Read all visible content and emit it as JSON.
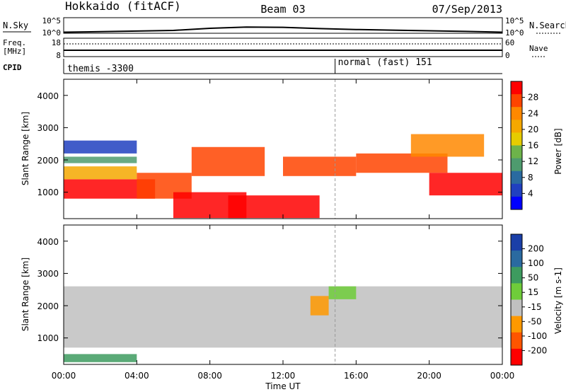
{
  "header": {
    "radar": "Hokkaido (fitACF)",
    "beam": "Beam 03",
    "date": "07/Sep/2013"
  },
  "top_panels": {
    "nsky_label": "N.Sky",
    "nsearch_label": "N.Search",
    "nsky_ticks": [
      "10^5",
      "10^0"
    ],
    "nsearch_ticks": [
      "10^5",
      "10^0"
    ],
    "freq_label_1": "Freq.",
    "freq_label_2": "[MHz]",
    "freq_ticks": [
      "18",
      "8"
    ],
    "nave_label": "Nave",
    "nave_ticks": [
      "60",
      "0"
    ],
    "cpid_label": "CPID",
    "cpid_entries": [
      {
        "label": "themis -3300",
        "start_hour": 0.0
      },
      {
        "label": "normal (fast) 151",
        "start_hour": 14.85
      }
    ]
  },
  "power_panel": {
    "ylabel": "Slant Range [km]",
    "yticks": [
      "4000",
      "3000",
      "2000",
      "1000"
    ],
    "colorbar_label": "Power [dB]",
    "colorbar_ticks": [
      "28",
      "24",
      "20",
      "16",
      "12",
      "8",
      "4"
    ],
    "colorbar_colors": [
      "#ff0000",
      "#ff4400",
      "#ff8800",
      "#f5a800",
      "#e6cc00",
      "#6db34a",
      "#4e9b6e",
      "#2a6aa0",
      "#2040c0",
      "#0000ff"
    ]
  },
  "velocity_panel": {
    "ylabel": "Slant Range [km]",
    "yticks": [
      "4000",
      "3000",
      "2000",
      "1000"
    ],
    "colorbar_label": "Velocity [m s-1]",
    "colorbar_ticks": [
      "200",
      "100",
      "50",
      "15",
      "-15",
      "-50",
      "-100",
      "-200"
    ],
    "colorbar_colors": [
      "#1a3fa8",
      "#2a6aa0",
      "#3d9b5f",
      "#6fcc3a",
      "#c0c0c0",
      "#ff9900",
      "#ff5500",
      "#ff0000"
    ]
  },
  "x_axis": {
    "ticks": [
      "00:00",
      "04:00",
      "08:00",
      "12:00",
      "16:00",
      "20:00",
      "00:00"
    ],
    "label": "Time UT"
  },
  "chart_data": {
    "type": "heatmap",
    "title": "Hokkaido (fitACF) Beam 03 07/Sep/2013",
    "xlabel": "Time UT",
    "ylabel": "Slant Range [km]",
    "xlim_hours": [
      0,
      24
    ],
    "ylim_km": [
      180,
      4500
    ],
    "grid": false,
    "series": [
      {
        "name": "Power",
        "unit": "dB",
        "scale_range": [
          0,
          30
        ],
        "regions": [
          {
            "t": [
              0,
              5
            ],
            "r": [
              800,
              1400
            ],
            "value": 28
          },
          {
            "t": [
              0,
              4
            ],
            "r": [
              1400,
              1800
            ],
            "value": 20
          },
          {
            "t": [
              0,
              4
            ],
            "r": [
              1900,
              2100
            ],
            "value": 12
          },
          {
            "t": [
              0,
              4
            ],
            "r": [
              2200,
              2600
            ],
            "value": 6
          },
          {
            "t": [
              4,
              7
            ],
            "r": [
              800,
              1600
            ],
            "value": 26
          },
          {
            "t": [
              6,
              10
            ],
            "r": [
              200,
              1000
            ],
            "value": 28
          },
          {
            "t": [
              7,
              11
            ],
            "r": [
              1500,
              2400
            ],
            "value": 24
          },
          {
            "t": [
              9,
              14
            ],
            "r": [
              200,
              900
            ],
            "value": 28
          },
          {
            "t": [
              12,
              16
            ],
            "r": [
              1500,
              2100
            ],
            "value": 24
          },
          {
            "t": [
              16,
              21
            ],
            "r": [
              1600,
              2200
            ],
            "value": 26
          },
          {
            "t": [
              20,
              24
            ],
            "r": [
              900,
              1600
            ],
            "value": 28
          },
          {
            "t": [
              19,
              23
            ],
            "r": [
              2100,
              2800
            ],
            "value": 22
          }
        ]
      },
      {
        "name": "Velocity",
        "unit": "m s-1",
        "scale_range": [
          -200,
          200
        ],
        "regions": [
          {
            "t": [
              0,
              24
            ],
            "r": [
              700,
              2600
            ],
            "value": 0
          },
          {
            "t": [
              0,
              4
            ],
            "r": [
              250,
              500
            ],
            "value": 60
          },
          {
            "t": [
              13.5,
              14.5
            ],
            "r": [
              1700,
              2300
            ],
            "value": -60
          },
          {
            "t": [
              14.5,
              16
            ],
            "r": [
              2200,
              2600
            ],
            "value": 40
          }
        ]
      }
    ],
    "n_sky_trend": [
      {
        "hour": 0,
        "log10": 0.35
      },
      {
        "hour": 2,
        "log10": 0.5
      },
      {
        "hour": 4,
        "log10": 0.7
      },
      {
        "hour": 6,
        "log10": 0.9
      },
      {
        "hour": 8,
        "log10": 1.6
      },
      {
        "hour": 10,
        "log10": 2.0
      },
      {
        "hour": 12,
        "log10": 1.9
      },
      {
        "hour": 14,
        "log10": 1.5
      },
      {
        "hour": 16,
        "log10": 1.2
      },
      {
        "hour": 18,
        "log10": 1.0
      },
      {
        "hour": 20,
        "log10": 0.8
      },
      {
        "hour": 22,
        "log10": 0.6
      },
      {
        "hour": 24,
        "log10": 0.35
      }
    ]
  }
}
